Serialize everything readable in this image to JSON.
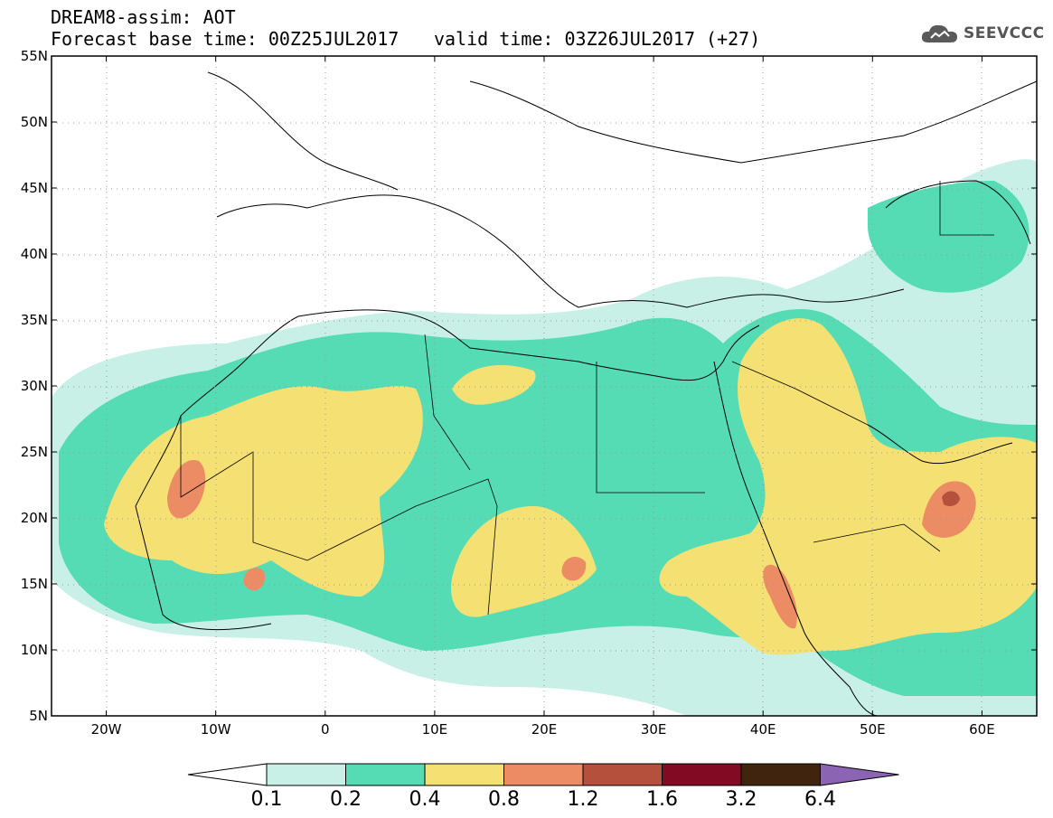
{
  "header": {
    "title_line1": "DREAM8-assim: AOT",
    "title_line2": "Forecast base time: 00Z25JUL2017",
    "valid_time": "valid time: 03Z26JUL2017 (+27)",
    "logo_text": "SEEVCCC",
    "logo_icon": "cloud-icon"
  },
  "map": {
    "variable": "AOT",
    "model": "DREAM8-assim",
    "projection": "lat-lon",
    "lon_range": [
      -25,
      65
    ],
    "lat_range": [
      5,
      55
    ],
    "lat_ticks": [
      "55N",
      "50N",
      "45N",
      "40N",
      "35N",
      "30N",
      "25N",
      "20N",
      "15N",
      "10N",
      "5N"
    ],
    "lon_ticks": [
      "20W",
      "10W",
      "0",
      "10E",
      "20E",
      "30E",
      "40E",
      "50E",
      "60E"
    ],
    "grid": "dotted"
  },
  "colorbar": {
    "labels": [
      "0.1",
      "0.2",
      "0.4",
      "0.8",
      "1.2",
      "1.6",
      "3.2",
      "6.4"
    ],
    "colors": [
      "#c8f0e6",
      "#55dcb4",
      "#f5e173",
      "#eb8c64",
      "#b4503c",
      "#820a23",
      "#40240e",
      "#8c64b4"
    ]
  }
}
